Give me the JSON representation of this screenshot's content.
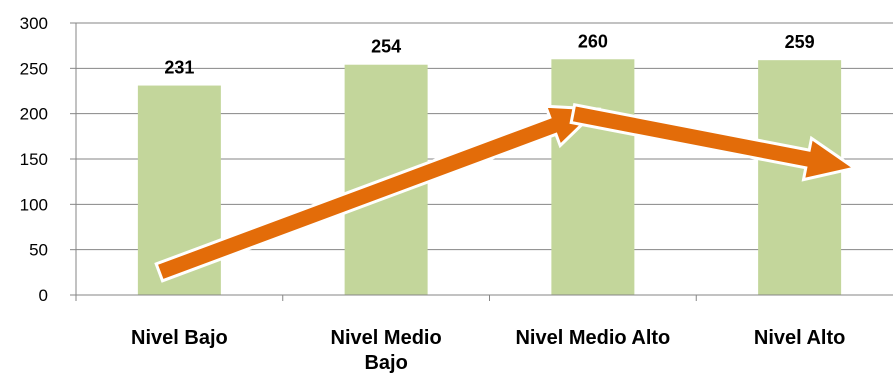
{
  "chart_data": {
    "type": "bar",
    "categories": [
      [
        "Nivel Bajo"
      ],
      [
        "Nivel Medio",
        "Bajo"
      ],
      [
        "Nivel Medio Alto"
      ],
      [
        "Nivel Alto"
      ]
    ],
    "values": [
      231,
      254,
      260,
      259
    ],
    "data_labels": [
      "231",
      "254",
      "260",
      "259"
    ],
    "title": "",
    "xlabel": "",
    "ylabel": "",
    "ylim": [
      0,
      300
    ],
    "yticks": [
      0,
      50,
      100,
      150,
      200,
      250,
      300
    ],
    "grid": true,
    "legend": "none",
    "colors": {
      "bar": "#c3d69b",
      "grid": "#868686",
      "arrow_fill": "#e36c09",
      "arrow_stroke": "#ffffff"
    },
    "annotations": [
      {
        "type": "arrow",
        "from": {
          "category": 0,
          "value": 25
        },
        "to": {
          "category": 2,
          "value": 205
        }
      },
      {
        "type": "arrow",
        "from": {
          "category": 2,
          "value": 200
        },
        "to": {
          "category": 3,
          "value": 140
        }
      }
    ]
  }
}
